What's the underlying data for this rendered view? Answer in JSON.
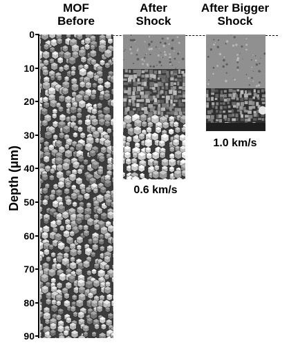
{
  "headers": {
    "mof_before": [
      "MOF",
      "Before"
    ],
    "after_shock": [
      "After",
      "Shock"
    ],
    "after_bigger_shock": [
      "After Bigger",
      "Shock"
    ]
  },
  "axis": {
    "label": "Depth (μm)",
    "ticks": [
      "0",
      "10",
      "20",
      "30",
      "40",
      "50",
      "60",
      "70",
      "80",
      "90"
    ]
  },
  "velocities": {
    "low": "0.6 km/s",
    "high": "1.0 km/s"
  },
  "colors": {
    "crystal_fill": "#9a9a9a",
    "crystal_dark": "#3c3c3c",
    "background": "#ffffff"
  }
}
